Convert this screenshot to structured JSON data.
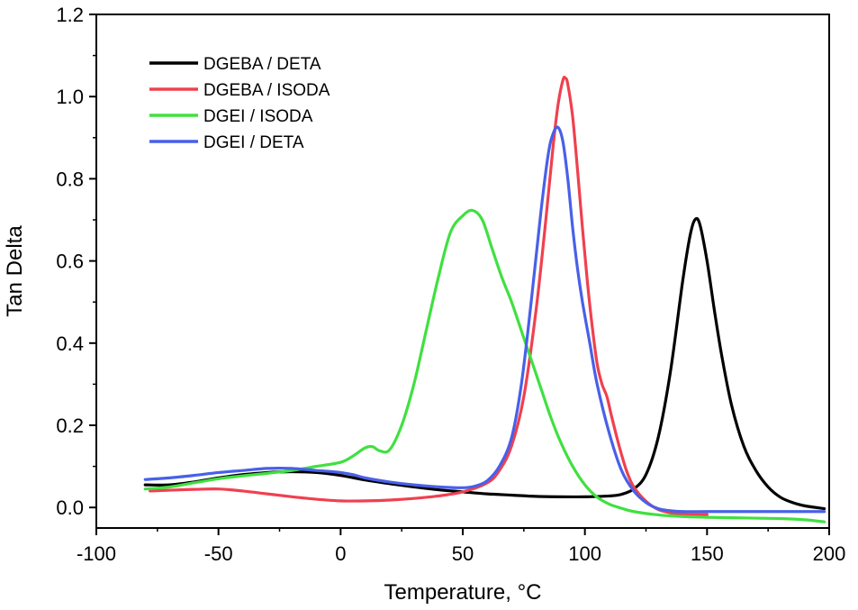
{
  "chart_data": {
    "type": "line",
    "title": "",
    "xlabel": "Temperature, °C",
    "ylabel": "Tan Delta",
    "xlim": [
      -100,
      200
    ],
    "ylim": [
      -0.05,
      1.2
    ],
    "x_ticks": [
      -100,
      -50,
      0,
      50,
      100,
      150,
      200
    ],
    "y_ticks": [
      0.0,
      0.2,
      0.4,
      0.6,
      0.8,
      1.0,
      1.2
    ],
    "x_tick_labels": [
      "-100",
      "-50",
      "0",
      "50",
      "100",
      "150",
      "200"
    ],
    "y_tick_labels": [
      "0.0",
      "0.2",
      "0.4",
      "0.6",
      "0.8",
      "1.0",
      "1.2"
    ],
    "grid": false,
    "legend_position": "top-left",
    "series": [
      {
        "name": "DGEBA / DETA",
        "color": "#000000",
        "x": [
          -80,
          -70,
          -60,
          -50,
          -40,
          -30,
          -20,
          -10,
          0,
          10,
          20,
          30,
          40,
          50,
          60,
          70,
          80,
          90,
          100,
          110,
          115,
          120,
          125,
          130,
          135,
          140,
          143,
          145,
          147,
          150,
          153,
          156,
          160,
          165,
          170,
          175,
          180,
          185,
          190,
          198
        ],
        "y": [
          0.055,
          0.055,
          0.062,
          0.072,
          0.08,
          0.085,
          0.087,
          0.085,
          0.078,
          0.067,
          0.058,
          0.05,
          0.043,
          0.038,
          0.033,
          0.03,
          0.027,
          0.026,
          0.026,
          0.028,
          0.032,
          0.045,
          0.08,
          0.17,
          0.33,
          0.55,
          0.66,
          0.7,
          0.69,
          0.6,
          0.48,
          0.37,
          0.25,
          0.15,
          0.09,
          0.05,
          0.025,
          0.012,
          0.004,
          -0.003
        ]
      },
      {
        "name": "DGEBA / ISODA",
        "color": "#f0404f",
        "x": [
          -78,
          -70,
          -60,
          -50,
          -40,
          -30,
          -20,
          -10,
          0,
          10,
          20,
          30,
          40,
          50,
          60,
          65,
          70,
          75,
          80,
          84,
          87,
          89,
          91,
          92,
          93,
          95,
          97,
          99,
          101,
          103,
          105,
          107,
          109,
          111,
          114,
          117,
          120,
          125,
          130,
          135,
          140,
          145,
          150
        ],
        "y": [
          0.04,
          0.042,
          0.044,
          0.045,
          0.04,
          0.033,
          0.026,
          0.02,
          0.016,
          0.016,
          0.018,
          0.022,
          0.028,
          0.038,
          0.06,
          0.09,
          0.15,
          0.27,
          0.48,
          0.7,
          0.88,
          0.98,
          1.04,
          1.045,
          1.03,
          0.95,
          0.82,
          0.68,
          0.55,
          0.44,
          0.35,
          0.3,
          0.27,
          0.22,
          0.15,
          0.09,
          0.05,
          0.015,
          -0.005,
          -0.013,
          -0.016,
          -0.017,
          -0.017
        ]
      },
      {
        "name": "DGEI / ISODA",
        "color": "#40e040",
        "x": [
          -80,
          -70,
          -60,
          -50,
          -40,
          -30,
          -20,
          -10,
          0,
          5,
          10,
          13,
          16,
          20,
          25,
          30,
          35,
          40,
          45,
          50,
          54,
          58,
          62,
          66,
          70,
          74,
          78,
          82,
          86,
          90,
          95,
          100,
          105,
          110,
          115,
          120,
          130,
          140,
          150,
          160,
          170,
          180,
          190,
          198
        ],
        "y": [
          0.045,
          0.05,
          0.06,
          0.07,
          0.077,
          0.083,
          0.09,
          0.1,
          0.11,
          0.125,
          0.145,
          0.148,
          0.138,
          0.14,
          0.2,
          0.3,
          0.43,
          0.56,
          0.67,
          0.71,
          0.723,
          0.7,
          0.63,
          0.56,
          0.5,
          0.43,
          0.36,
          0.29,
          0.22,
          0.16,
          0.1,
          0.055,
          0.025,
          0.008,
          -0.002,
          -0.01,
          -0.018,
          -0.022,
          -0.024,
          -0.025,
          -0.026,
          -0.027,
          -0.03,
          -0.035
        ]
      },
      {
        "name": "DGEI / DETA",
        "color": "#4860e8",
        "x": [
          -80,
          -70,
          -60,
          -50,
          -40,
          -30,
          -20,
          -10,
          -5,
          0,
          5,
          10,
          20,
          30,
          40,
          50,
          55,
          60,
          65,
          70,
          74,
          78,
          82,
          85,
          87,
          89,
          91,
          93,
          95,
          97,
          99,
          102,
          105,
          110,
          115,
          120,
          125,
          130,
          135,
          140,
          150,
          160,
          170,
          180,
          190,
          198
        ],
        "y": [
          0.068,
          0.072,
          0.078,
          0.085,
          0.09,
          0.095,
          0.095,
          0.09,
          0.088,
          0.085,
          0.08,
          0.072,
          0.062,
          0.055,
          0.05,
          0.048,
          0.052,
          0.065,
          0.1,
          0.17,
          0.3,
          0.5,
          0.72,
          0.86,
          0.91,
          0.925,
          0.89,
          0.8,
          0.68,
          0.58,
          0.5,
          0.4,
          0.3,
          0.18,
          0.09,
          0.04,
          0.012,
          -0.003,
          -0.008,
          -0.01,
          -0.01,
          -0.01,
          -0.01,
          -0.01,
          -0.01,
          -0.01
        ]
      }
    ]
  }
}
